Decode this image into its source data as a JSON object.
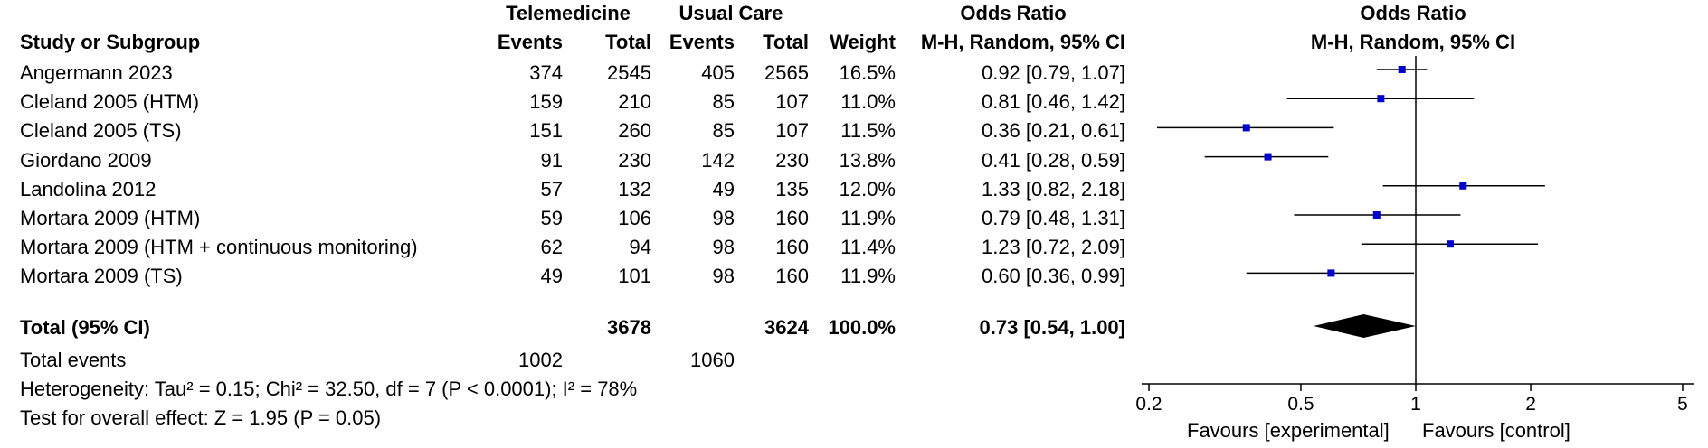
{
  "headers": {
    "group_telemedicine": "Telemedicine",
    "group_usual_care": "Usual Care",
    "group_odds_ratio": "Odds Ratio",
    "plot_title": "Odds Ratio",
    "col_study": "Study or Subgroup",
    "col_tele_events": "Events",
    "col_tele_total": "Total",
    "col_uc_events": "Events",
    "col_uc_total": "Total",
    "col_weight": "Weight",
    "col_or_method": "M-H, Random, 95% CI",
    "plot_method": "M-H, Random, 95% CI"
  },
  "studies": [
    {
      "name": "Angermann 2023",
      "te": "374",
      "tt": "2545",
      "ue": "405",
      "ut": "2565",
      "w": "16.5%",
      "ci": "0.92 [0.79, 1.07]"
    },
    {
      "name": "Cleland 2005 (HTM)",
      "te": "159",
      "tt": "210",
      "ue": "85",
      "ut": "107",
      "w": "11.0%",
      "ci": "0.81 [0.46, 1.42]"
    },
    {
      "name": "Cleland 2005 (TS)",
      "te": "151",
      "tt": "260",
      "ue": "85",
      "ut": "107",
      "w": "11.5%",
      "ci": "0.36 [0.21, 0.61]"
    },
    {
      "name": "Giordano 2009",
      "te": "91",
      "tt": "230",
      "ue": "142",
      "ut": "230",
      "w": "13.8%",
      "ci": "0.41 [0.28, 0.59]"
    },
    {
      "name": "Landolina 2012",
      "te": "57",
      "tt": "132",
      "ue": "49",
      "ut": "135",
      "w": "12.0%",
      "ci": "1.33 [0.82, 2.18]"
    },
    {
      "name": "Mortara 2009 (HTM)",
      "te": "59",
      "tt": "106",
      "ue": "98",
      "ut": "160",
      "w": "11.9%",
      "ci": "0.79 [0.48, 1.31]"
    },
    {
      "name": "Mortara 2009 (HTM + continuous monitoring)",
      "te": "62",
      "tt": "94",
      "ue": "98",
      "ut": "160",
      "w": "11.4%",
      "ci": "1.23 [0.72, 2.09]"
    },
    {
      "name": "Mortara 2009 (TS)",
      "te": "49",
      "tt": "101",
      "ue": "98",
      "ut": "160",
      "w": "11.9%",
      "ci": "0.60 [0.36, 0.99]"
    }
  ],
  "total": {
    "label": "Total (95% CI)",
    "tele_total": "3678",
    "uc_total": "3624",
    "weight": "100.0%",
    "ci": "0.73 [0.54, 1.00]",
    "events_label": "Total events",
    "tele_events": "1002",
    "uc_events": "1060"
  },
  "footer": {
    "heterogeneity": "Heterogeneity: Tau² = 0.15; Chi² = 32.50, df = 7 (P < 0.0001); I² = 78%",
    "overall": "Test for overall effect: Z = 1.95 (P = 0.05)"
  },
  "chart_data": {
    "type": "forest",
    "title": "Odds Ratio",
    "subtitle": "M-H, Random, 95% CI",
    "scale": "log",
    "xlim": [
      0.2,
      5
    ],
    "ticks": [
      0.2,
      0.5,
      1,
      2,
      5
    ],
    "tick_labels": [
      "0.2",
      "0.5",
      "1",
      "2",
      "5"
    ],
    "reference_line": 1,
    "favours_left": "Favours [experimental]",
    "favours_right": "Favours [control]",
    "marker_color": "#0000cc",
    "diamond_color": "#000000",
    "studies": [
      {
        "name": "Angermann 2023",
        "or": 0.92,
        "lo": 0.79,
        "hi": 1.07,
        "weight": 16.5
      },
      {
        "name": "Cleland 2005 (HTM)",
        "or": 0.81,
        "lo": 0.46,
        "hi": 1.42,
        "weight": 11.0
      },
      {
        "name": "Cleland 2005 (TS)",
        "or": 0.36,
        "lo": 0.21,
        "hi": 0.61,
        "weight": 11.5
      },
      {
        "name": "Giordano 2009",
        "or": 0.41,
        "lo": 0.28,
        "hi": 0.59,
        "weight": 13.8
      },
      {
        "name": "Landolina 2012",
        "or": 1.33,
        "lo": 0.82,
        "hi": 2.18,
        "weight": 12.0
      },
      {
        "name": "Mortara 2009 (HTM)",
        "or": 0.79,
        "lo": 0.48,
        "hi": 1.31,
        "weight": 11.9
      },
      {
        "name": "Mortara 2009 (HTM + continuous monitoring)",
        "or": 1.23,
        "lo": 0.72,
        "hi": 2.09,
        "weight": 11.4
      },
      {
        "name": "Mortara 2009 (TS)",
        "or": 0.6,
        "lo": 0.36,
        "hi": 0.99,
        "weight": 11.9
      }
    ],
    "pooled": {
      "or": 0.73,
      "lo": 0.54,
      "hi": 1.0
    }
  }
}
